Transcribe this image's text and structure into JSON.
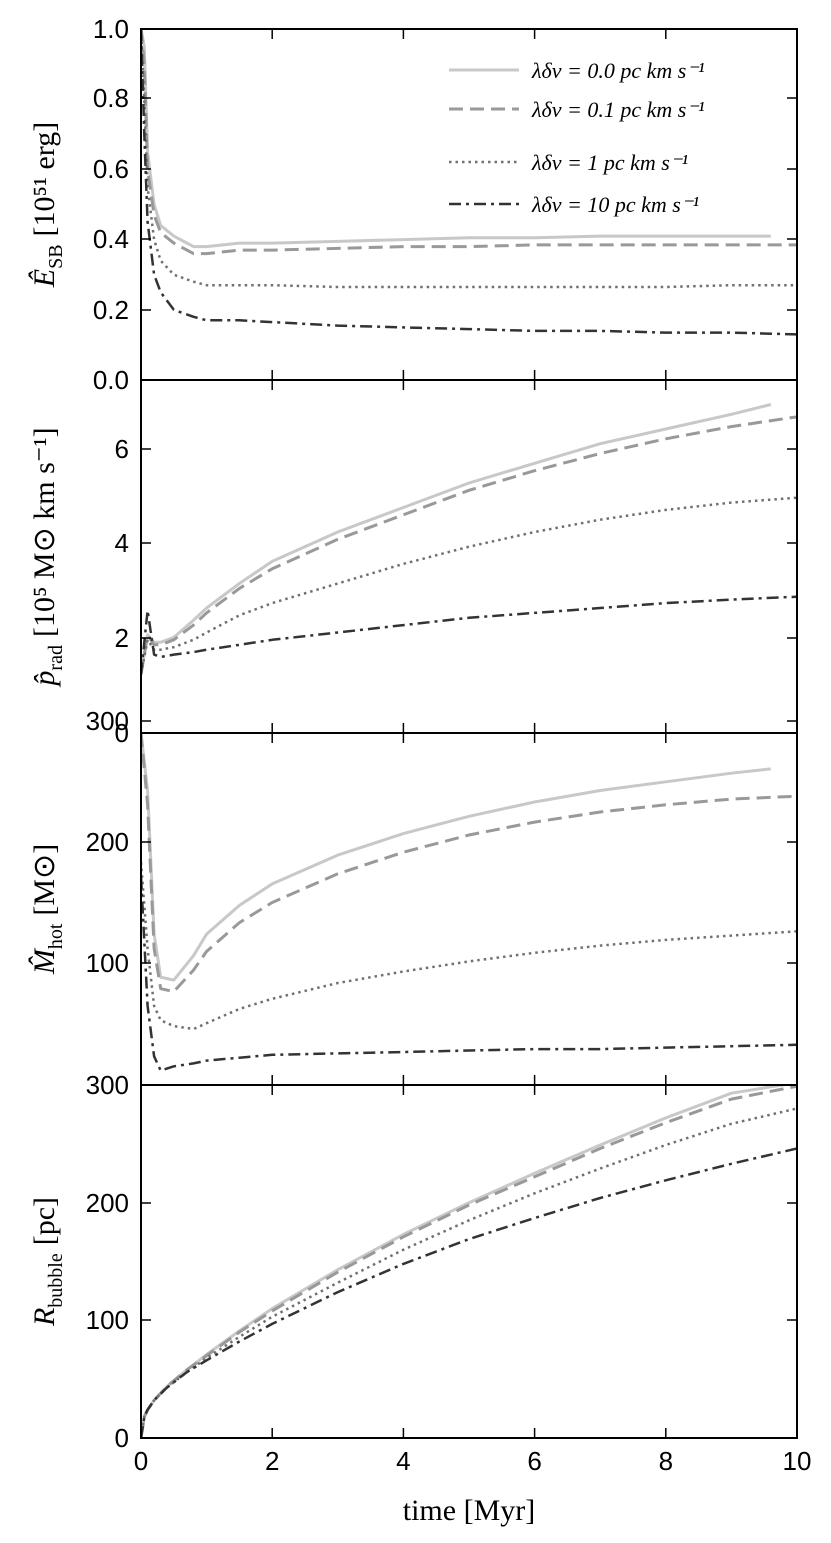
{
  "chart_data": [
    {
      "type": "line",
      "ylabel_main": "Ê",
      "ylabel_sub": "SB",
      "ylabel_unit": "[10⁵¹ erg]",
      "xlim": [
        0,
        10
      ],
      "ylim": [
        0,
        1.0
      ],
      "yticks": [
        "0.0",
        "0.2",
        "0.4",
        "0.6",
        "0.8",
        "1.0"
      ],
      "legend_position": "top-right",
      "legend": [
        {
          "label": "λδv = 0.0 pc km s⁻¹",
          "style": "solid",
          "color": "#c8c8c8"
        },
        {
          "label": "λδv = 0.1 pc km s⁻¹",
          "style": "dashed",
          "color": "#999999"
        },
        {
          "label": "λδv = 1 pc km s⁻¹",
          "style": "dotted",
          "color": "#707070"
        },
        {
          "label": "λδv = 10 pc km s⁻¹",
          "style": "dashdot",
          "color": "#333333"
        }
      ],
      "series": [
        {
          "style": "solid",
          "color": "#c8c8c8",
          "x": [
            0,
            0.05,
            0.1,
            0.2,
            0.3,
            0.5,
            0.8,
            1.0,
            1.5,
            2,
            3,
            4,
            5,
            6,
            7,
            8,
            9,
            9.6
          ],
          "y": [
            1.0,
            0.95,
            0.65,
            0.5,
            0.44,
            0.41,
            0.38,
            0.38,
            0.39,
            0.39,
            0.395,
            0.4,
            0.405,
            0.405,
            0.41,
            0.41,
            0.41,
            0.41
          ]
        },
        {
          "style": "dashed",
          "color": "#999999",
          "x": [
            0,
            0.05,
            0.1,
            0.2,
            0.3,
            0.5,
            0.8,
            1.0,
            1.5,
            2,
            3,
            4,
            5,
            6,
            7,
            8,
            9,
            10
          ],
          "y": [
            1.0,
            0.9,
            0.6,
            0.47,
            0.42,
            0.39,
            0.36,
            0.36,
            0.37,
            0.37,
            0.375,
            0.38,
            0.38,
            0.385,
            0.385,
            0.385,
            0.385,
            0.385
          ]
        },
        {
          "style": "dotted",
          "color": "#707070",
          "x": [
            0,
            0.05,
            0.1,
            0.2,
            0.3,
            0.5,
            0.8,
            1.0,
            1.5,
            2,
            3,
            4,
            5,
            6,
            7,
            8,
            9,
            10
          ],
          "y": [
            1.0,
            0.8,
            0.55,
            0.4,
            0.34,
            0.3,
            0.28,
            0.27,
            0.27,
            0.27,
            0.265,
            0.265,
            0.265,
            0.265,
            0.265,
            0.265,
            0.27,
            0.27
          ]
        },
        {
          "style": "dashdot",
          "color": "#333333",
          "x": [
            0,
            0.05,
            0.1,
            0.2,
            0.3,
            0.5,
            0.8,
            1.0,
            1.5,
            2,
            3,
            4,
            5,
            6,
            7,
            8,
            9,
            10
          ],
          "y": [
            1.0,
            0.7,
            0.45,
            0.3,
            0.25,
            0.2,
            0.18,
            0.17,
            0.17,
            0.165,
            0.155,
            0.15,
            0.145,
            0.14,
            0.14,
            0.135,
            0.135,
            0.13
          ]
        }
      ]
    },
    {
      "type": "line",
      "ylabel_main": "p̂",
      "ylabel_sub": "rad",
      "ylabel_unit": "[10⁵ M⊙ km s⁻¹]",
      "xlim": [
        0,
        10
      ],
      "ylim": [
        0,
        7.2
      ],
      "yticks": [
        "0",
        "2",
        "4",
        "6"
      ],
      "series": [
        {
          "style": "solid",
          "color": "#c8c8c8",
          "x": [
            0,
            0.1,
            0.2,
            0.3,
            0.5,
            0.8,
            1,
            1.5,
            2,
            3,
            4,
            5,
            6,
            7,
            8,
            9,
            9.6
          ],
          "y": [
            1.2,
            2.0,
            1.85,
            1.85,
            1.95,
            2.3,
            2.55,
            3.05,
            3.5,
            4.1,
            4.6,
            5.1,
            5.5,
            5.9,
            6.2,
            6.5,
            6.7
          ]
        },
        {
          "style": "dashed",
          "color": "#999999",
          "x": [
            0,
            0.1,
            0.2,
            0.3,
            0.5,
            0.8,
            1,
            1.5,
            2,
            3,
            4,
            5,
            6,
            7,
            8,
            9,
            10
          ],
          "y": [
            1.2,
            2.0,
            1.8,
            1.8,
            1.9,
            2.2,
            2.45,
            2.95,
            3.35,
            3.95,
            4.45,
            4.95,
            5.35,
            5.7,
            6.0,
            6.25,
            6.45
          ]
        },
        {
          "style": "dotted",
          "color": "#707070",
          "x": [
            0,
            0.1,
            0.2,
            0.3,
            0.5,
            0.8,
            1,
            1.5,
            2,
            3,
            4,
            5,
            6,
            7,
            8,
            9,
            10
          ],
          "y": [
            1.2,
            1.9,
            1.7,
            1.7,
            1.75,
            1.9,
            2.05,
            2.4,
            2.65,
            3.05,
            3.45,
            3.8,
            4.1,
            4.35,
            4.55,
            4.7,
            4.8
          ]
        },
        {
          "style": "dashdot",
          "color": "#333333",
          "x": [
            0,
            0.1,
            0.2,
            0.3,
            0.5,
            0.8,
            1,
            1.5,
            2,
            3,
            4,
            5,
            6,
            7,
            8,
            9,
            10
          ],
          "y": [
            1.2,
            2.5,
            1.6,
            1.55,
            1.6,
            1.65,
            1.7,
            1.8,
            1.9,
            2.05,
            2.2,
            2.35,
            2.45,
            2.55,
            2.65,
            2.72,
            2.78
          ]
        }
      ]
    },
    {
      "type": "line",
      "ylabel_main": "M̂",
      "ylabel_sub": "hot",
      "ylabel_unit": "[M⊙]",
      "xlim": [
        0,
        10
      ],
      "ylim": [
        45,
        290
      ],
      "yticks": [
        "100",
        "200",
        "300"
      ],
      "series": [
        {
          "style": "solid",
          "color": "#c8c8c8",
          "x": [
            0,
            0.1,
            0.2,
            0.3,
            0.5,
            0.8,
            1,
            1.5,
            2,
            3,
            4,
            5,
            6,
            7,
            8,
            9,
            9.6
          ],
          "y": [
            290,
            250,
            150,
            120,
            118,
            135,
            150,
            170,
            185,
            205,
            220,
            232,
            242,
            250,
            256,
            262,
            265
          ]
        },
        {
          "style": "dashed",
          "color": "#999999",
          "x": [
            0,
            0.1,
            0.2,
            0.3,
            0.5,
            0.8,
            1,
            1.5,
            2,
            3,
            4,
            5,
            6,
            7,
            8,
            9,
            10
          ],
          "y": [
            290,
            240,
            140,
            112,
            110,
            125,
            138,
            158,
            172,
            192,
            207,
            219,
            228,
            235,
            240,
            244,
            246
          ]
        },
        {
          "style": "dotted",
          "color": "#707070",
          "x": [
            0,
            0.1,
            0.2,
            0.3,
            0.5,
            0.8,
            1,
            1.5,
            2,
            3,
            4,
            5,
            6,
            7,
            8,
            9,
            10
          ],
          "y": [
            200,
            140,
            100,
            90,
            86,
            84,
            88,
            98,
            105,
            116,
            124,
            131,
            137,
            142,
            146,
            149,
            152
          ]
        },
        {
          "style": "dashdot",
          "color": "#333333",
          "x": [
            0,
            0.1,
            0.2,
            0.3,
            0.5,
            0.8,
            1,
            1.5,
            2,
            3,
            4,
            5,
            6,
            7,
            8,
            9,
            10
          ],
          "y": [
            190,
            100,
            65,
            55,
            58,
            60,
            62,
            64,
            66,
            67,
            68,
            69,
            70,
            70,
            71,
            72,
            73
          ]
        }
      ]
    },
    {
      "type": "line",
      "ylabel_main": "R",
      "ylabel_sub": "bubble",
      "ylabel_unit": "[pc]",
      "xlim": [
        0,
        10
      ],
      "ylim": [
        0,
        300
      ],
      "yticks": [
        "0",
        "100",
        "200",
        "300"
      ],
      "xticks": [
        "0",
        "2",
        "4",
        "6",
        "8",
        "10"
      ],
      "xlabel": "time [Myr]",
      "series": [
        {
          "style": "solid",
          "color": "#c8c8c8",
          "x": [
            0,
            0.05,
            0.1,
            0.2,
            0.4,
            0.7,
            1,
            1.5,
            2,
            3,
            4,
            5,
            6,
            7,
            8,
            9,
            10
          ],
          "y": [
            0,
            18,
            24,
            32,
            44,
            58,
            71,
            91,
            110,
            143,
            173,
            200,
            225,
            249,
            272,
            293,
            302
          ]
        },
        {
          "style": "dashed",
          "color": "#999999",
          "x": [
            0,
            0.05,
            0.1,
            0.2,
            0.4,
            0.7,
            1,
            1.5,
            2,
            3,
            4,
            5,
            6,
            7,
            8,
            9,
            10
          ],
          "y": [
            0,
            18,
            24,
            32,
            44,
            58,
            70,
            90,
            108,
            141,
            171,
            198,
            222,
            246,
            268,
            288,
            299
          ]
        },
        {
          "style": "dotted",
          "color": "#707070",
          "x": [
            0,
            0.05,
            0.1,
            0.2,
            0.4,
            0.7,
            1,
            1.5,
            2,
            3,
            4,
            5,
            6,
            7,
            8,
            9,
            10
          ],
          "y": [
            0,
            18,
            24,
            32,
            43,
            56,
            68,
            86,
            103,
            132,
            160,
            185,
            208,
            229,
            249,
            267,
            280
          ]
        },
        {
          "style": "dashdot",
          "color": "#333333",
          "x": [
            0,
            0.05,
            0.1,
            0.2,
            0.4,
            0.7,
            1,
            1.5,
            2,
            3,
            4,
            5,
            6,
            7,
            8,
            9,
            10
          ],
          "y": [
            0,
            18,
            24,
            32,
            43,
            56,
            66,
            82,
            97,
            124,
            148,
            169,
            187,
            204,
            219,
            233,
            246
          ]
        }
      ]
    }
  ]
}
